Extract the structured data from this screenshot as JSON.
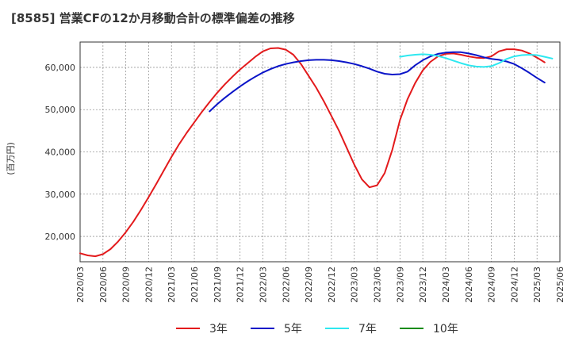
{
  "chart_data": {
    "type": "line",
    "title": "[8585]  営業CFの12か月移動合計の標準偏差の推移",
    "ylabel": "(百万円)",
    "xlabel": "",
    "ylim": [
      14000,
      66000
    ],
    "yticks": [
      20000,
      30000,
      40000,
      50000,
      60000
    ],
    "ytick_labels": [
      "20,000",
      "30,000",
      "40,000",
      "50,000",
      "60,000"
    ],
    "xtick_labels": [
      "2020/03",
      "2020/06",
      "2020/09",
      "2020/12",
      "2021/03",
      "2021/06",
      "2021/09",
      "2021/12",
      "2022/03",
      "2022/06",
      "2022/09",
      "2022/12",
      "2023/03",
      "2023/06",
      "2023/09",
      "2023/12",
      "2024/03",
      "2024/06",
      "2024/09",
      "2024/12",
      "2025/03",
      "2025/06"
    ],
    "grid": true,
    "legend_position": "bottom",
    "series": [
      {
        "name": "3年",
        "color": "#e31a1c",
        "values": [
          [
            "2020/03",
            16000
          ],
          [
            "2020/04",
            15500
          ],
          [
            "2020/05",
            15300
          ],
          [
            "2020/06",
            15800
          ],
          [
            "2020/07",
            17000
          ],
          [
            "2020/08",
            18800
          ],
          [
            "2020/09",
            21000
          ],
          [
            "2020/10",
            23500
          ],
          [
            "2020/11",
            26300
          ],
          [
            "2020/12",
            29300
          ],
          [
            "2021/01",
            32400
          ],
          [
            "2021/02",
            35600
          ],
          [
            "2021/03",
            38800
          ],
          [
            "2021/04",
            41800
          ],
          [
            "2021/05",
            44500
          ],
          [
            "2021/06",
            47000
          ],
          [
            "2021/07",
            49500
          ],
          [
            "2021/08",
            51800
          ],
          [
            "2021/09",
            54000
          ],
          [
            "2021/10",
            56000
          ],
          [
            "2021/11",
            57800
          ],
          [
            "2021/12",
            59500
          ],
          [
            "2022/01",
            61000
          ],
          [
            "2022/02",
            62500
          ],
          [
            "2022/03",
            63800
          ],
          [
            "2022/04",
            64500
          ],
          [
            "2022/05",
            64600
          ],
          [
            "2022/06",
            64200
          ],
          [
            "2022/07",
            63000
          ],
          [
            "2022/08",
            60800
          ],
          [
            "2022/09",
            58000
          ],
          [
            "2022/10",
            55200
          ],
          [
            "2022/11",
            52000
          ],
          [
            "2022/12",
            48500
          ],
          [
            "2023/01",
            45000
          ],
          [
            "2023/02",
            41000
          ],
          [
            "2023/03",
            37000
          ],
          [
            "2023/04",
            33500
          ],
          [
            "2023/05",
            31600
          ],
          [
            "2023/06",
            32100
          ],
          [
            "2023/07",
            35000
          ],
          [
            "2023/08",
            40500
          ],
          [
            "2023/09",
            47500
          ],
          [
            "2023/10",
            52500
          ],
          [
            "2023/11",
            56300
          ],
          [
            "2023/12",
            59300
          ],
          [
            "2024/01",
            61300
          ],
          [
            "2024/02",
            62600
          ],
          [
            "2024/03",
            63200
          ],
          [
            "2024/04",
            63300
          ],
          [
            "2024/05",
            63000
          ],
          [
            "2024/06",
            62600
          ],
          [
            "2024/07",
            62300
          ],
          [
            "2024/08",
            62200
          ],
          [
            "2024/09",
            62600
          ],
          [
            "2024/10",
            63800
          ],
          [
            "2024/11",
            64300
          ],
          [
            "2024/12",
            64300
          ],
          [
            "2025/01",
            64000
          ],
          [
            "2025/02",
            63300
          ],
          [
            "2025/03",
            62300
          ],
          [
            "2025/04",
            61200
          ]
        ]
      },
      {
        "name": "5年",
        "color": "#0a14c8",
        "values": [
          [
            "2021/08",
            49600
          ],
          [
            "2021/09",
            51300
          ],
          [
            "2021/10",
            52800
          ],
          [
            "2021/11",
            54200
          ],
          [
            "2021/12",
            55500
          ],
          [
            "2022/01",
            56700
          ],
          [
            "2022/02",
            57800
          ],
          [
            "2022/03",
            58800
          ],
          [
            "2022/04",
            59600
          ],
          [
            "2022/05",
            60300
          ],
          [
            "2022/06",
            60800
          ],
          [
            "2022/07",
            61200
          ],
          [
            "2022/08",
            61500
          ],
          [
            "2022/09",
            61700
          ],
          [
            "2022/10",
            61800
          ],
          [
            "2022/11",
            61800
          ],
          [
            "2022/12",
            61700
          ],
          [
            "2023/01",
            61500
          ],
          [
            "2023/02",
            61200
          ],
          [
            "2023/03",
            60800
          ],
          [
            "2023/04",
            60300
          ],
          [
            "2023/05",
            59700
          ],
          [
            "2023/06",
            59000
          ],
          [
            "2023/07",
            58500
          ],
          [
            "2023/08",
            58300
          ],
          [
            "2023/09",
            58400
          ],
          [
            "2023/10",
            59000
          ],
          [
            "2023/11",
            60500
          ],
          [
            "2023/12",
            61700
          ],
          [
            "2024/01",
            62600
          ],
          [
            "2024/02",
            63200
          ],
          [
            "2024/03",
            63500
          ],
          [
            "2024/04",
            63600
          ],
          [
            "2024/05",
            63600
          ],
          [
            "2024/06",
            63300
          ],
          [
            "2024/07",
            62900
          ],
          [
            "2024/08",
            62400
          ],
          [
            "2024/09",
            62000
          ],
          [
            "2024/10",
            61800
          ],
          [
            "2024/11",
            61400
          ],
          [
            "2024/12",
            60800
          ],
          [
            "2025/01",
            59800
          ],
          [
            "2025/02",
            58700
          ],
          [
            "2025/03",
            57500
          ],
          [
            "2025/04",
            56400
          ]
        ]
      },
      {
        "name": "7年",
        "color": "#2ee8f0",
        "values": [
          [
            "2023/09",
            62500
          ],
          [
            "2023/10",
            62800
          ],
          [
            "2023/11",
            63000
          ],
          [
            "2023/12",
            63100
          ],
          [
            "2024/01",
            63000
          ],
          [
            "2024/02",
            62700
          ],
          [
            "2024/03",
            62200
          ],
          [
            "2024/04",
            61600
          ],
          [
            "2024/05",
            61000
          ],
          [
            "2024/06",
            60500
          ],
          [
            "2024/07",
            60200
          ],
          [
            "2024/08",
            60100
          ],
          [
            "2024/09",
            60300
          ],
          [
            "2024/10",
            61000
          ],
          [
            "2024/11",
            62000
          ],
          [
            "2024/12",
            62600
          ],
          [
            "2025/01",
            62900
          ],
          [
            "2025/02",
            63000
          ],
          [
            "2025/03",
            62900
          ],
          [
            "2025/04",
            62500
          ],
          [
            "2025/05",
            62100
          ]
        ]
      },
      {
        "name": "10年",
        "color": "#1a8c1a",
        "values": []
      }
    ]
  }
}
